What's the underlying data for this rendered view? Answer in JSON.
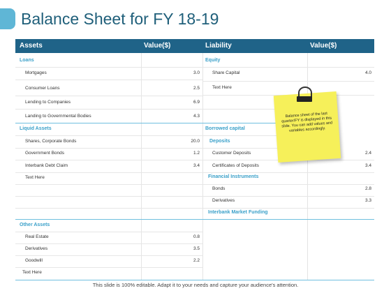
{
  "title": "Balance Sheet for FY 18-19",
  "header": {
    "assets": "Assets",
    "value1": "Value($)",
    "liability": "Liability",
    "value2": "Value($)"
  },
  "assets": {
    "loans_label": "Loans",
    "loans": [
      {
        "name": "Mortgages",
        "value": "3.0"
      },
      {
        "name": "Consumer Loans",
        "value": "2.5"
      },
      {
        "name": "Lending to Companies",
        "value": "6.9"
      },
      {
        "name": "Landing to Governmental Bodies",
        "value": "4.3"
      }
    ],
    "liquid_label": "Liquid  Assets",
    "liquid": [
      {
        "name": "Shares, Corporate Bonds",
        "value": "20.0"
      },
      {
        "name": "Government Bonds",
        "value": "1.2"
      },
      {
        "name": "Interbank Debt Claim",
        "value": "3.4"
      },
      {
        "name": "Text Here",
        "value": ""
      }
    ],
    "other_label": "Other Assets",
    "other": [
      {
        "name": "Real Estate",
        "value": "0.8"
      },
      {
        "name": "Derivatives",
        "value": "3.5"
      },
      {
        "name": "Goodwill",
        "value": "2.2"
      }
    ],
    "text_here": "Text Here"
  },
  "liabilities": {
    "equity_label": "Equity",
    "equity": [
      {
        "name": "Share Capital",
        "value": "4.0"
      },
      {
        "name": "Text Here",
        "value": ""
      }
    ],
    "borrowed_label": "Borrowed capital",
    "deposits_label": "Deposits",
    "deposits": [
      {
        "name": "Customer Deposits",
        "value": "2.4"
      },
      {
        "name": "Certificates of Deposits",
        "value": "3.4"
      }
    ],
    "fin_label": "Financial  Instruments",
    "fin": [
      {
        "name": "Bonds",
        "value": "2.8"
      },
      {
        "name": "Derivatives",
        "value": "3.3"
      }
    ],
    "interbank_label": "Interbank Market Funding"
  },
  "note": "Balance sheet of the last quarter/FY  is displayed in this slide. You can add values and variables accordingly.",
  "footer": "This slide is 100% editable. Adapt it to your needs and capture your audience's attention.",
  "colors": {
    "header": "#1f6388",
    "accent": "#5fb6d6",
    "section": "#3aa0c9",
    "note": "#f6f05a"
  }
}
